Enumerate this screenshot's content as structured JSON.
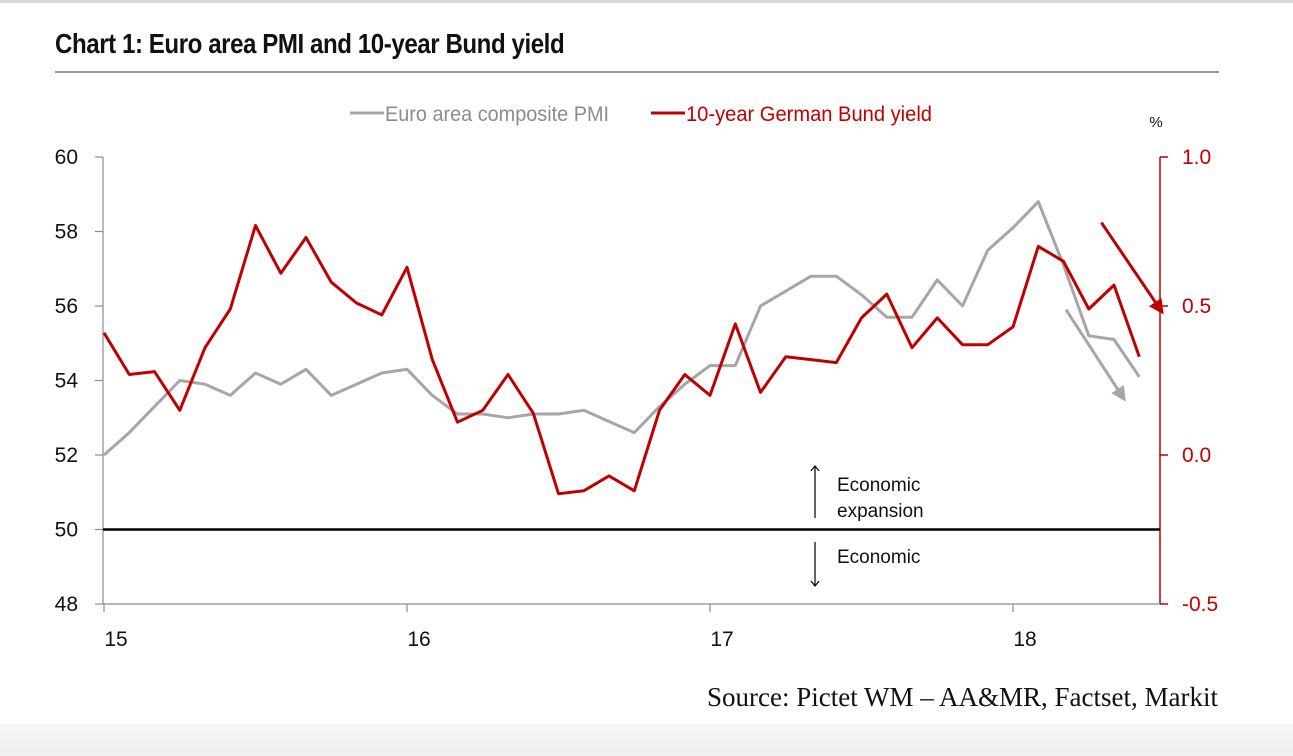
{
  "chart_data": {
    "type": "line",
    "title": "Chart 1: Euro area PMI and 10-year Bund yield",
    "source": "Source: Pictet WM – AA&MR, Factset, Markit",
    "x_labels": [
      "15",
      "16",
      "17",
      "18"
    ],
    "left_axis": {
      "ticks": [
        "60",
        "58",
        "56",
        "54",
        "52",
        "50",
        "48"
      ],
      "ylim": [
        48,
        60
      ]
    },
    "right_axis": {
      "unit": "%",
      "ticks": [
        "1.0",
        "0.5",
        "0.0",
        "-0.5"
      ],
      "ylim": [
        -0.5,
        1.0
      ]
    },
    "reference_line": {
      "value": 50
    },
    "annotations": {
      "expansion": [
        "Economic",
        "expansion"
      ],
      "contraction": [
        "Economic"
      ]
    },
    "series": [
      {
        "name": "Euro area composite PMI",
        "axis": "left",
        "color": "#a6a6a6",
        "values": [
          52.0,
          52.6,
          53.3,
          54.0,
          53.9,
          53.6,
          54.2,
          53.9,
          54.3,
          53.6,
          53.9,
          54.2,
          54.3,
          53.6,
          53.1,
          53.1,
          53.0,
          53.1,
          53.1,
          53.2,
          52.9,
          52.6,
          53.3,
          53.9,
          54.4,
          54.4,
          56.0,
          56.4,
          56.8,
          56.8,
          56.3,
          55.7,
          55.7,
          56.7,
          56.0,
          57.5,
          58.1,
          58.8,
          57.1,
          55.2,
          55.1,
          54.1
        ]
      },
      {
        "name": "10-year German Bund yield",
        "axis": "right",
        "color": "#c00000",
        "values": [
          0.41,
          0.27,
          0.28,
          0.15,
          0.36,
          0.49,
          0.77,
          0.61,
          0.73,
          0.58,
          0.51,
          0.47,
          0.63,
          0.32,
          0.11,
          0.15,
          0.27,
          0.14,
          -0.13,
          -0.12,
          -0.07,
          -0.12,
          0.15,
          0.27,
          0.2,
          0.44,
          0.21,
          0.33,
          0.32,
          0.31,
          0.46,
          0.54,
          0.36,
          0.46,
          0.37,
          0.37,
          0.43,
          0.7,
          0.65,
          0.49,
          0.57,
          0.33
        ]
      }
    ],
    "trend_arrows": [
      {
        "series": "Euro area composite PMI",
        "color": "#a6a6a6",
        "from": [
          38.1,
          55.9
        ],
        "to": [
          40.4,
          53.5
        ]
      },
      {
        "series": "10-year German Bund yield",
        "color": "#c00000",
        "from": [
          39.5,
          0.78
        ],
        "to": [
          41.9,
          0.48
        ]
      }
    ]
  }
}
